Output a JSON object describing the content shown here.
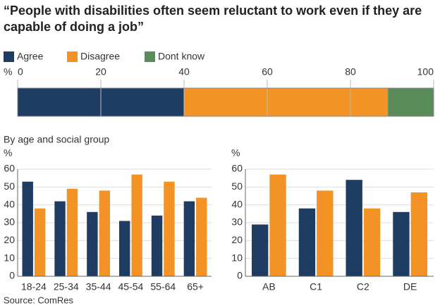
{
  "title": "“People with disabilities often seem reluctant to work even if they are capable of doing a job”",
  "source": "Source: ComRes",
  "chart_data": [
    {
      "type": "bar",
      "orientation": "horizontal",
      "stacked": true,
      "xlabel": "%",
      "categories": [
        null
      ],
      "series": [
        {
          "name": "Agree",
          "color": "#1f3d63",
          "values": [
            40
          ]
        },
        {
          "name": "Disagree",
          "color": "#f39325",
          "values": [
            49
          ]
        },
        {
          "name": "Dont know",
          "color": "#5b8a5b",
          "values": [
            11
          ]
        }
      ],
      "xlim": [
        0,
        100
      ],
      "xticks": [
        0,
        20,
        40,
        60,
        80,
        100
      ],
      "grid": true
    },
    {
      "type": "bar",
      "subtitle": "By age and social group",
      "ylabel": "%",
      "categories": [
        "18-24",
        "25-34",
        "35-44",
        "45-54",
        "55-64",
        "65+"
      ],
      "series": [
        {
          "name": "Agree",
          "color": "#1f3d63",
          "values": [
            53,
            42,
            36,
            31,
            34,
            42
          ]
        },
        {
          "name": "Disagree",
          "color": "#f39325",
          "values": [
            38,
            49,
            48,
            57,
            53,
            44
          ]
        }
      ],
      "ylim": [
        0,
        60
      ],
      "yticks": [
        0,
        10,
        20,
        30,
        40,
        50,
        60
      ],
      "grid": true
    },
    {
      "type": "bar",
      "ylabel": "%",
      "categories": [
        "AB",
        "C1",
        "C2",
        "DE"
      ],
      "series": [
        {
          "name": "Agree",
          "color": "#1f3d63",
          "values": [
            29,
            38,
            54,
            36
          ]
        },
        {
          "name": "Disagree",
          "color": "#f39325",
          "values": [
            57,
            48,
            38,
            47
          ]
        }
      ],
      "ylim": [
        0,
        60
      ],
      "yticks": [
        0,
        10,
        20,
        30,
        40,
        50,
        60
      ],
      "grid": true
    }
  ]
}
